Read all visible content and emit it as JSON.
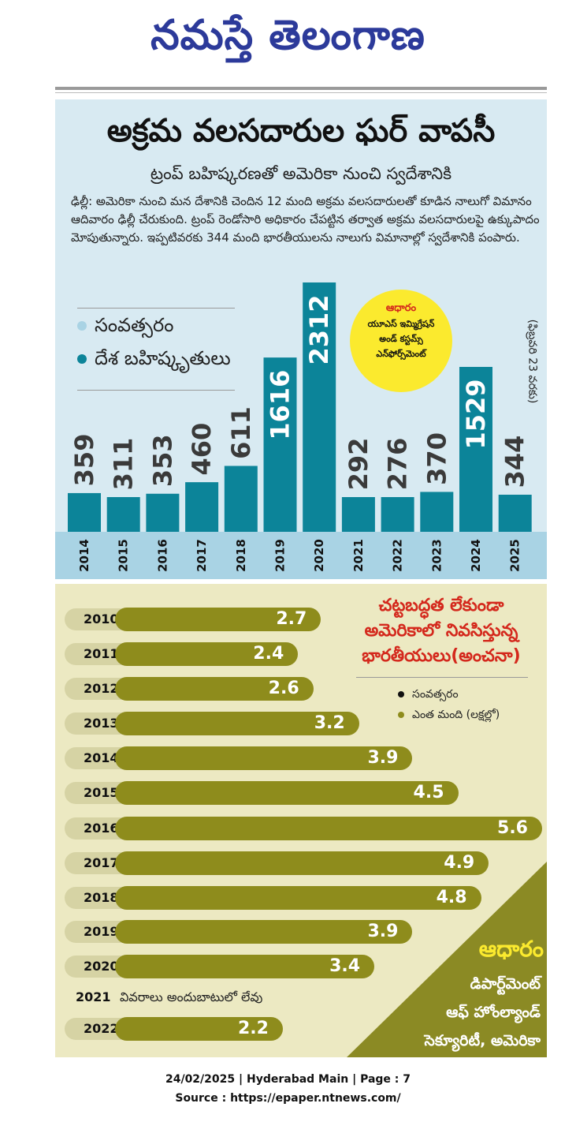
{
  "masthead": {
    "title": "నమస్తే తెలంగాణ"
  },
  "article": {
    "headline": "అక్రమ వలసదారుల ఘర్ వాపసీ",
    "subheadline": "ట్రంప్ బహిష్కరణతో అమెరికా నుంచి స్వదేశానికి",
    "body": "ఢిల్లీ: అమెరికా నుంచి మన దేశానికి చెందిన 12 మంది అక్రమ వలసదారులతో కూడిన నాలుగో విమానం ఆదివారం ఢిల్లీ చేరుకుంది. ట్రంప్ రెండోసారి అధికారం చేపట్టిన తర్వాత అక్రమ వలసదారులపై ఉక్కుపాదం మోపుతున్నారు. ఇప్పటివరకు 344 మంది భారతీయులను నాలుగు విమానాల్లో స్వదేశానికి పంపారు."
  },
  "colors": {
    "top_panel_bg": "#d8eaf2",
    "top_bar": "#0c8499",
    "year_strip": "#a9d3e4",
    "bottom_panel_bg": "#ece9c2",
    "olive_bar": "#8e8c1c",
    "olive_year_pill": "#d6d3a4",
    "olive_corner": "#8b8a24",
    "source_circle": "#fbea2e",
    "red_title": "#d4281c",
    "masthead_blue": "#2c3a9a"
  },
  "top_chart_legend": {
    "year_label": "సంవత్సరం",
    "value_label": "దేశ బహిష్కృతులు"
  },
  "top_chart_source": {
    "title": "ఆధారం",
    "line1": "యూఎస్ ఇమ్మిగ్రేషన్",
    "line2": "అండ్ కస్టమ్స్",
    "line3": "ఎన్‌ఫోర్స్‌మెంట్"
  },
  "top_chart_note": "(ఫిబ్రవరి 23 వరకు)",
  "bottom_chart_legend": {
    "title_line1": "చట్టబద్ధత లేకుండా",
    "title_line2": "అమెరికాలో నివసిస్తున్న",
    "title_line3": "భారతీయులు(అంచనా)",
    "year_label": "సంవత్సరం",
    "value_label": "ఎంత మంది (లక్షల్లో)"
  },
  "bottom_chart_source": {
    "title": "ఆధారం",
    "line1": "డిపార్ట్‌మెంట్",
    "line2": "ఆఫ్ హోంల్యాండ్",
    "line3": "సెక్యూరిటీ, అమెరికా"
  },
  "bottom_chart_nodata": {
    "year": "2021",
    "text": "వివరాలు అందుబాటులో లేవు"
  },
  "footer": {
    "line1": "24/02/2025 | Hyderabad Main | Page : 7",
    "line2": "Source : https://epaper.ntnews.com/"
  },
  "chart_data": [
    {
      "type": "bar",
      "title": "",
      "xlabel": "",
      "ylabel": "",
      "categories": [
        "2014",
        "2015",
        "2016",
        "2017",
        "2018",
        "2019",
        "2020",
        "2021",
        "2022",
        "2023",
        "2024",
        "2025"
      ],
      "values": [
        359,
        311,
        353,
        460,
        611,
        1616,
        2312,
        292,
        276,
        370,
        1529,
        344
      ],
      "ylim": [
        0,
        2312
      ],
      "grid": false
    },
    {
      "type": "bar",
      "orientation": "horizontal",
      "title": "",
      "xlabel": "",
      "ylabel": "",
      "categories": [
        "2010",
        "2011",
        "2012",
        "2013",
        "2014",
        "2015",
        "2016",
        "2017",
        "2018",
        "2019",
        "2020",
        "2022"
      ],
      "values": [
        2.7,
        2.4,
        2.6,
        3.2,
        3.9,
        4.5,
        5.6,
        4.9,
        4.8,
        3.9,
        3.4,
        2.2
      ],
      "value_labels": [
        "2.7",
        "2.4",
        "2.6",
        "3.2",
        "3.9",
        "4.5",
        "5.6",
        "4.9",
        "4.8",
        "3.9",
        "3.4",
        "2.2"
      ],
      "xlim": [
        0,
        5.6
      ],
      "grid": false
    }
  ]
}
